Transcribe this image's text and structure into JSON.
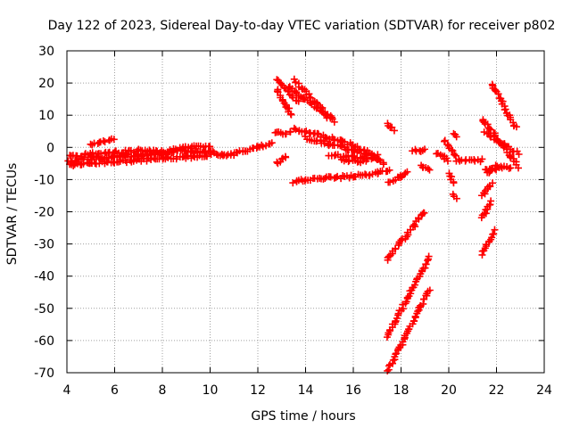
{
  "chart_data": {
    "type": "scatter",
    "title": "Day 122 of 2023, Sidereal Day-to-day VTEC variation (SDTVAR) for receiver p802",
    "xlabel": "GPS time / hours",
    "ylabel": "SDTVAR / TECUs",
    "xlim": [
      4,
      24
    ],
    "ylim": [
      -70,
      30
    ],
    "xticks": [
      4,
      6,
      8,
      10,
      12,
      14,
      16,
      18,
      20,
      22,
      24
    ],
    "yticks": [
      -70,
      -60,
      -50,
      -40,
      -30,
      -20,
      -10,
      0,
      10,
      20,
      30
    ],
    "grid": true,
    "marker": "+",
    "color": "#ff0000",
    "segments": [
      {
        "x": [
          4.0,
          4.5,
          5.0,
          5.5,
          6.0,
          6.5,
          7.0,
          7.5,
          8.0,
          8.5,
          9.0,
          9.5,
          10.0,
          10.5,
          11.0,
          11.5,
          12.0,
          12.6
        ],
        "y": [
          -4.5,
          -4,
          -3,
          -3.5,
          -3,
          -2.5,
          -2.5,
          -2,
          -2,
          -1.5,
          -1,
          -1.5,
          -1,
          -2.5,
          -2,
          -1,
          0,
          1
        ]
      },
      {
        "x": [
          4.0,
          5.0,
          6.0,
          7.0,
          8.0,
          9.0,
          10.0
        ],
        "y": [
          -3,
          -2,
          -1.5,
          -1,
          -1.5,
          0,
          0.5
        ]
      },
      {
        "x": [
          4.0,
          5.0,
          6.0,
          7.0,
          8.0,
          9.0,
          10.0
        ],
        "y": [
          -5.5,
          -5,
          -4.5,
          -4,
          -3.5,
          -3,
          -2.5
        ]
      },
      {
        "x": [
          12.8,
          13.7
        ],
        "y": [
          21,
          14
        ]
      },
      {
        "x": [
          12.8,
          13.4
        ],
        "y": [
          18,
          10
        ]
      },
      {
        "x": [
          13.5,
          15.2
        ],
        "y": [
          21,
          8
        ]
      },
      {
        "x": [
          13.3,
          15.0
        ],
        "y": [
          19,
          9
        ]
      },
      {
        "x": [
          12.7,
          13.4
        ],
        "y": [
          4.5,
          4.5
        ]
      },
      {
        "x": [
          13.5,
          14.5,
          15.5,
          16.5,
          17.3
        ],
        "y": [
          5.5,
          4,
          2,
          -1,
          -5
        ]
      },
      {
        "x": [
          14.0,
          15.0,
          16.0,
          17.0
        ],
        "y": [
          3,
          1,
          -1,
          -2.5
        ]
      },
      {
        "x": [
          15.0,
          16.0,
          17.0
        ],
        "y": [
          -2.5,
          -3,
          -3.5
        ]
      },
      {
        "x": [
          15.5,
          16.5
        ],
        "y": [
          -4,
          -4.5
        ]
      },
      {
        "x": [
          12.8,
          13.2
        ],
        "y": [
          -5,
          -3
        ]
      },
      {
        "x": [
          13.5,
          14.0,
          15.0,
          16.0,
          17.0,
          17.5
        ],
        "y": [
          -11,
          -10,
          -9.5,
          -9,
          -8,
          -7
        ]
      },
      {
        "x": [
          17.4,
          17.7
        ],
        "y": [
          7.5,
          5.5
        ]
      },
      {
        "x": [
          17.5,
          18.0,
          18.3
        ],
        "y": [
          -11,
          -9,
          -8
        ]
      },
      {
        "x": [
          17.4,
          19.0
        ],
        "y": [
          -35,
          -20
        ]
      },
      {
        "x": [
          17.4,
          19.2
        ],
        "y": [
          -59,
          -34
        ]
      },
      {
        "x": [
          17.4,
          19.2
        ],
        "y": [
          -70,
          -44
        ]
      },
      {
        "x": [
          18.5,
          19.0
        ],
        "y": [
          -1,
          -1
        ]
      },
      {
        "x": [
          18.8,
          19.2
        ],
        "y": [
          -6,
          -7
        ]
      },
      {
        "x": [
          19.5,
          20.0
        ],
        "y": [
          -2,
          -4
        ]
      },
      {
        "x": [
          19.8,
          20.3
        ],
        "y": [
          2,
          -3
        ]
      },
      {
        "x": [
          20.0,
          20.2
        ],
        "y": [
          -8,
          -11
        ]
      },
      {
        "x": [
          20.2,
          20.3
        ],
        "y": [
          4.5,
          3.5
        ]
      },
      {
        "x": [
          20.2,
          20.3
        ],
        "y": [
          -15,
          -16
        ]
      },
      {
        "x": [
          20.3,
          21.4
        ],
        "y": [
          -4,
          -4
        ]
      },
      {
        "x": [
          21.4,
          22.9
        ],
        "y": [
          9,
          -6
        ]
      },
      {
        "x": [
          21.5,
          22.9
        ],
        "y": [
          5,
          -2
        ]
      },
      {
        "x": [
          21.8,
          22.8
        ],
        "y": [
          20,
          6
        ]
      },
      {
        "x": [
          21.6,
          22.0
        ],
        "y": [
          -8,
          -6
        ]
      },
      {
        "x": [
          21.5,
          22.0
        ],
        "y": [
          -6.5,
          -7
        ]
      },
      {
        "x": [
          22.0,
          22.6
        ],
        "y": [
          -6,
          -6.5
        ]
      },
      {
        "x": [
          21.4,
          21.8
        ],
        "y": [
          -15,
          -11
        ]
      },
      {
        "x": [
          21.4,
          21.8
        ],
        "y": [
          -22,
          -17
        ]
      },
      {
        "x": [
          21.4,
          21.9
        ],
        "y": [
          -33,
          -26
        ]
      },
      {
        "x": [
          5.0,
          6.0
        ],
        "y": [
          1,
          2.5
        ]
      }
    ]
  }
}
